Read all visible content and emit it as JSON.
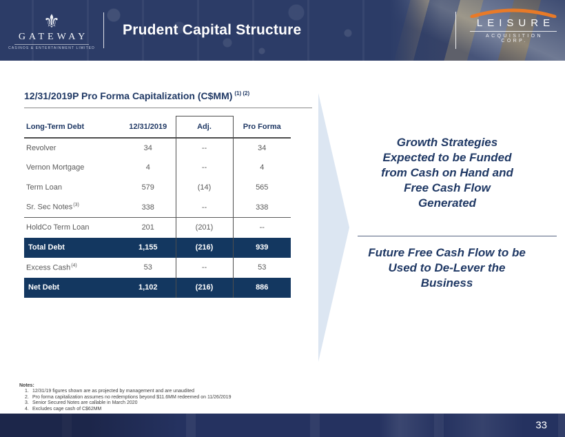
{
  "header": {
    "gateway_logo": {
      "name": "GATEWAY",
      "tagline": "CASINOS & ENTERTAINMENT LIMITED"
    },
    "title": "Prudent Capital Structure",
    "leisure_logo": {
      "name": "LEISURE",
      "subtitle": "ACQUISITION CORP."
    }
  },
  "section": {
    "title": "12/31/2019P Pro Forma Capitalization (C$MM)",
    "title_superscript": "(1) (2)"
  },
  "table": {
    "columns": [
      "Long-Term Debt",
      "12/31/2019",
      "Adj.",
      "Pro Forma"
    ],
    "rows": [
      {
        "label": "Revolver",
        "sup": "",
        "dec2019": "34",
        "adj": "--",
        "proforma": "34",
        "style": "normal"
      },
      {
        "label": "Vernon Mortgage",
        "sup": "",
        "dec2019": "4",
        "adj": "--",
        "proforma": "4",
        "style": "normal"
      },
      {
        "label": "Term Loan",
        "sup": "",
        "dec2019": "579",
        "adj": "(14)",
        "proforma": "565",
        "style": "normal"
      },
      {
        "label": "Sr. Sec Notes",
        "sup": "(3)",
        "dec2019": "338",
        "adj": "--",
        "proforma": "338",
        "style": "normal rule-below"
      },
      {
        "label": "HoldCo Term Loan",
        "sup": "",
        "dec2019": "201",
        "adj": "(201)",
        "proforma": "--",
        "style": "normal"
      },
      {
        "label": "Total Debt",
        "sup": "",
        "dec2019": "1,155",
        "adj": "(216)",
        "proforma": "939",
        "style": "highlight"
      },
      {
        "label": "Excess Cash",
        "sup": "(4)",
        "dec2019": "53",
        "adj": "--",
        "proforma": "53",
        "style": "normal"
      },
      {
        "label": "Net Debt",
        "sup": "",
        "dec2019": "1,102",
        "adj": "(216)",
        "proforma": "886",
        "style": "highlight"
      }
    ]
  },
  "callouts": {
    "first": "Growth Strategies Expected to be Funded from Cash on Hand and Free Cash Flow Generated",
    "second": "Future Free Cash Flow to be Used to De-Lever the Business"
  },
  "notes": {
    "heading": "Notes:",
    "items": [
      "12/31/19 figures shown are as projected by management and are unaudited",
      "Pro forma capitalization assumes no redemptions beyond $11.6MM redeemed on 11/26/2019",
      "Senior Secured Notes are callable in March 2020",
      "Excludes cage cash of C$62MM"
    ]
  },
  "footer": {
    "page_number": "33"
  },
  "colors": {
    "header_navy": "#2c3c67",
    "table_navy": "#133760",
    "title_navy": "#1f3864",
    "pale_blue_chevron": "#dce6f2",
    "orange_arc": "#e87a28",
    "footer_navy": "#253260"
  }
}
